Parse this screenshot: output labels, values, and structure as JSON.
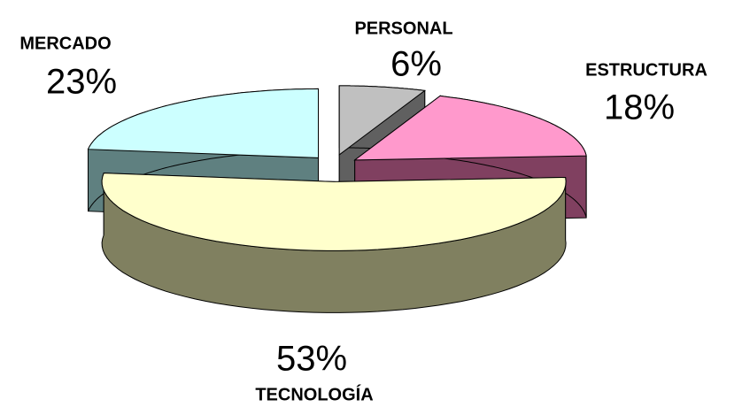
{
  "chart_data": {
    "type": "pie",
    "categories": [
      "PERSONAL",
      "ESTRUCTURA",
      "TECNOLOGÍA",
      "MERCADO"
    ],
    "values": [
      6,
      18,
      53,
      23
    ],
    "value_labels": [
      "6%",
      "18%",
      "53%",
      "23%"
    ],
    "colors": [
      "#c0c0c0",
      "#ff99cc",
      "#ffffcc",
      "#ccffff"
    ],
    "side_colors": [
      "#606060",
      "#804060",
      "#808060",
      "#5f8080"
    ]
  }
}
